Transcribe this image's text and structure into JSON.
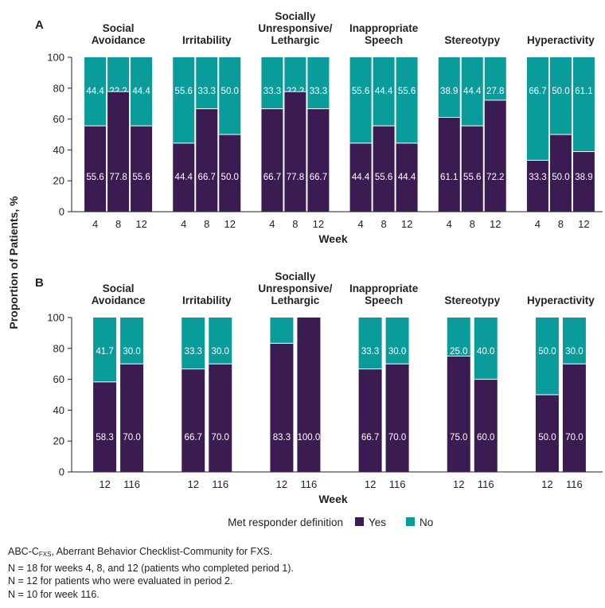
{
  "colors": {
    "yes": "#3a1b52",
    "no": "#0a9b9b",
    "axis": "#222222"
  },
  "ylabel": "Proportion of Patients, %",
  "yticks": [
    0,
    20,
    40,
    60,
    80,
    100
  ],
  "legend": {
    "title": "Met responder definition",
    "yes": "Yes",
    "no": "No"
  },
  "footnotes": {
    "line1_prefix": "ABC-C",
    "line1_sub": "FXS",
    "line1_suffix": ", Aberrant Behavior Checklist-Community for FXS.",
    "line2": "N = 18 for weeks 4, 8, and 12 (patients who completed period 1).",
    "line3": "N = 12 for patients who were evaluated in period 2.",
    "line4": "N = 10 for week 116."
  },
  "chart_data": [
    {
      "type": "bar",
      "stacked": true,
      "panel_label": "A",
      "xlabel": "Week",
      "ylabel": "Proportion of Patients, %",
      "ylim": [
        0,
        100
      ],
      "groups": [
        {
          "title": [
            "Social",
            "Avoidance"
          ],
          "categories": [
            "4",
            "8",
            "12"
          ],
          "yes": [
            55.6,
            77.8,
            55.6
          ],
          "no": [
            44.4,
            22.2,
            44.4
          ]
        },
        {
          "title": [
            "Irritability"
          ],
          "categories": [
            "4",
            "8",
            "12"
          ],
          "yes": [
            44.4,
            66.7,
            50.0
          ],
          "no": [
            55.6,
            33.3,
            50.0
          ]
        },
        {
          "title": [
            "Socially",
            "Unresponsive/",
            "Lethargic"
          ],
          "categories": [
            "4",
            "8",
            "12"
          ],
          "yes": [
            66.7,
            77.8,
            66.7
          ],
          "no": [
            33.3,
            22.2,
            33.3
          ]
        },
        {
          "title": [
            "Inappropriate",
            "Speech"
          ],
          "categories": [
            "4",
            "8",
            "12"
          ],
          "yes": [
            44.4,
            55.6,
            44.4
          ],
          "no": [
            55.6,
            44.4,
            55.6
          ]
        },
        {
          "title": [
            "Stereotypy"
          ],
          "categories": [
            "4",
            "8",
            "12"
          ],
          "yes": [
            61.1,
            55.6,
            72.2
          ],
          "no": [
            38.9,
            44.4,
            27.8
          ]
        },
        {
          "title": [
            "Hyperactivity"
          ],
          "categories": [
            "4",
            "8",
            "12"
          ],
          "yes": [
            33.3,
            50.0,
            38.9
          ],
          "no": [
            66.7,
            50.0,
            61.1
          ]
        }
      ]
    },
    {
      "type": "bar",
      "stacked": true,
      "panel_label": "B",
      "xlabel": "Week",
      "ylabel": "Proportion of Patients, %",
      "ylim": [
        0,
        100
      ],
      "groups": [
        {
          "title": [
            "Social",
            "Avoidance"
          ],
          "categories": [
            "12",
            "116"
          ],
          "yes": [
            58.3,
            70.0
          ],
          "no": [
            41.7,
            30.0
          ]
        },
        {
          "title": [
            "Irritability"
          ],
          "categories": [
            "12",
            "116"
          ],
          "yes": [
            66.7,
            70.0
          ],
          "no": [
            33.3,
            30.0
          ]
        },
        {
          "title": [
            "Socially",
            "Unresponsive/",
            "Lethargic"
          ],
          "categories": [
            "12",
            "116"
          ],
          "yes": [
            83.3,
            100.0
          ],
          "no": [
            16.7,
            null
          ]
        },
        {
          "title": [
            "Inappropriate",
            "Speech"
          ],
          "categories": [
            "12",
            "116"
          ],
          "yes": [
            66.7,
            70.0
          ],
          "no": [
            33.3,
            30.0
          ]
        },
        {
          "title": [
            "Stereotypy"
          ],
          "categories": [
            "12",
            "116"
          ],
          "yes": [
            75.0,
            60.0
          ],
          "no": [
            25.0,
            40.0
          ]
        },
        {
          "title": [
            "Hyperactivity"
          ],
          "categories": [
            "12",
            "116"
          ],
          "yes": [
            50.0,
            70.0
          ],
          "no": [
            50.0,
            30.0
          ]
        }
      ]
    }
  ]
}
